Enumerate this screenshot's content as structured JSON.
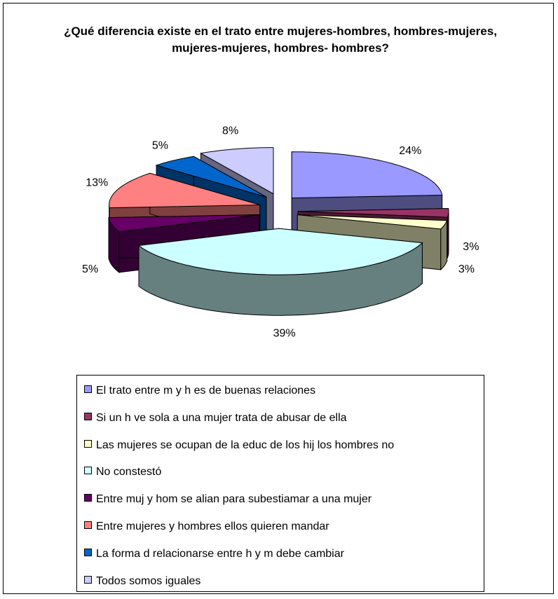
{
  "chart_data": {
    "type": "pie",
    "title": "¿Qué diferencia existe en el trato entre mujeres-hombres, hombres-mujeres, mujeres-mujeres, hombres- hombres?",
    "categories": [
      "El trato entre m y h es de buenas relaciones",
      "Si un h ve sola a una mujer trata de abusar de ella",
      "Las mujeres se ocupan de la educ de los hij los hombres no",
      "No constestó",
      "Entre muj y hom se alian para subestiamar a una mujer",
      "Entre mujeres y hombres ellos quieren mandar",
      "La forma d relacionarse entre h y m debe cambiar",
      "Todos somos iguales"
    ],
    "values": [
      24,
      3,
      3,
      39,
      5,
      13,
      5,
      8
    ],
    "value_labels": [
      "24%",
      "3%",
      "3%",
      "39%",
      "5%",
      "13%",
      "5%",
      "8%"
    ],
    "colors": [
      "#9999ff",
      "#993366",
      "#ffffcc",
      "#ccffff",
      "#660066",
      "#ff8080",
      "#0066cc",
      "#ccccff"
    ],
    "legend": "bottom"
  }
}
